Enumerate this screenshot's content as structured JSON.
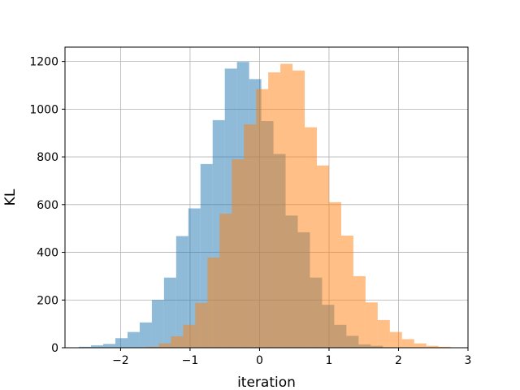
{
  "chart_data": {
    "type": "bar",
    "title": "",
    "xlabel": "iteration",
    "ylabel": "KL",
    "xlim": [
      -2.8,
      3.0
    ],
    "ylim": [
      0,
      1260
    ],
    "xticks": [
      -2,
      -1,
      0,
      1,
      2,
      3
    ],
    "yticks": [
      0,
      200,
      400,
      600,
      800,
      1000,
      1200
    ],
    "xtick_labels": [
      "−2",
      "−1",
      "0",
      "1",
      "2",
      "3"
    ],
    "ytick_labels": [
      "0",
      "200",
      "400",
      "600",
      "800",
      "1000",
      "1200"
    ],
    "grid": true,
    "legend": "none",
    "series": [
      {
        "color": "#1f77b4",
        "alpha": 0.5,
        "bins": [
          [
            -2.6,
            -2.425,
            4
          ],
          [
            -2.425,
            -2.25,
            10
          ],
          [
            -2.25,
            -2.075,
            16
          ],
          [
            -2.075,
            -1.9,
            40
          ],
          [
            -1.9,
            -1.725,
            66
          ],
          [
            -1.725,
            -1.55,
            106
          ],
          [
            -1.55,
            -1.375,
            200
          ],
          [
            -1.375,
            -1.2,
            294
          ],
          [
            -1.2,
            -1.025,
            468
          ],
          [
            -1.025,
            -0.85,
            584
          ],
          [
            -0.85,
            -0.675,
            770
          ],
          [
            -0.675,
            -0.5,
            954
          ],
          [
            -0.5,
            -0.325,
            1170
          ],
          [
            -0.325,
            -0.15,
            1198
          ],
          [
            -0.15,
            0.025,
            1126
          ],
          [
            0.025,
            0.2,
            950
          ],
          [
            0.2,
            0.375,
            812
          ],
          [
            0.375,
            0.55,
            554
          ],
          [
            0.55,
            0.725,
            484
          ],
          [
            0.725,
            0.9,
            294
          ],
          [
            0.9,
            1.075,
            180
          ],
          [
            1.075,
            1.25,
            96
          ],
          [
            1.25,
            1.425,
            50
          ],
          [
            1.425,
            1.6,
            14
          ],
          [
            1.6,
            1.775,
            8
          ],
          [
            1.775,
            1.95,
            2
          ]
        ]
      },
      {
        "color": "#ff7f0e",
        "alpha": 0.5,
        "bins": [
          [
            -1.625,
            -1.45,
            4
          ],
          [
            -1.45,
            -1.275,
            18
          ],
          [
            -1.275,
            -1.1,
            48
          ],
          [
            -1.1,
            -0.925,
            96
          ],
          [
            -0.925,
            -0.75,
            188
          ],
          [
            -0.75,
            -0.575,
            378
          ],
          [
            -0.575,
            -0.4,
            562
          ],
          [
            -0.4,
            -0.225,
            790
          ],
          [
            -0.225,
            -0.05,
            936
          ],
          [
            -0.05,
            0.125,
            1084
          ],
          [
            0.125,
            0.3,
            1154
          ],
          [
            0.3,
            0.475,
            1190
          ],
          [
            0.475,
            0.65,
            1162
          ],
          [
            0.65,
            0.825,
            924
          ],
          [
            0.825,
            1.0,
            764
          ],
          [
            1.0,
            1.175,
            610
          ],
          [
            1.175,
            1.35,
            470
          ],
          [
            1.35,
            1.525,
            300
          ],
          [
            1.525,
            1.7,
            190
          ],
          [
            1.7,
            1.875,
            116
          ],
          [
            1.875,
            2.05,
            66
          ],
          [
            2.05,
            2.225,
            36
          ],
          [
            2.225,
            2.4,
            18
          ],
          [
            2.4,
            2.575,
            8
          ],
          [
            2.575,
            2.75,
            4
          ]
        ]
      }
    ]
  }
}
